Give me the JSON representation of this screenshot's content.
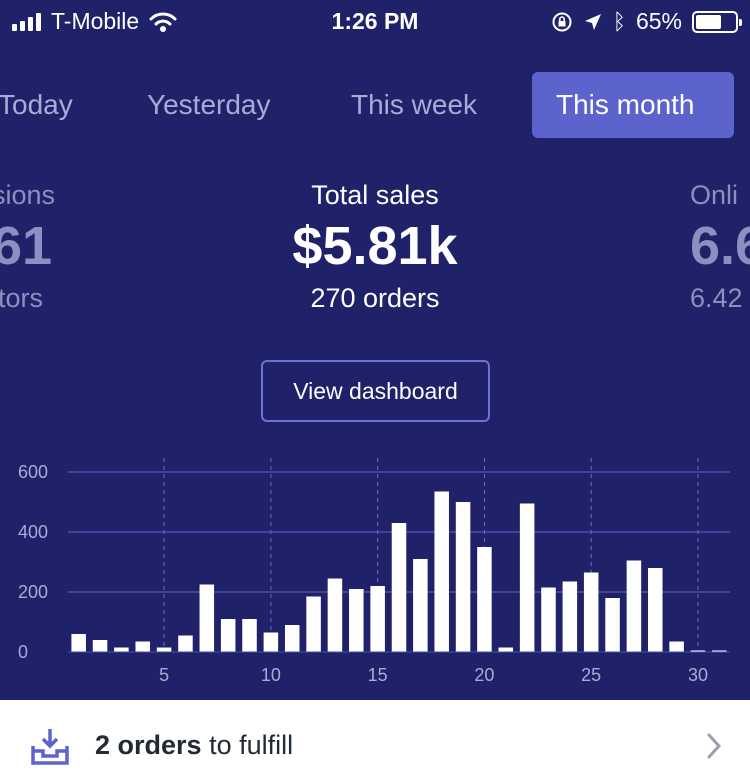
{
  "status_bar": {
    "carrier": "T-Mobile",
    "time": "1:26 PM",
    "battery_percent": "65%",
    "battery_level": 0.65
  },
  "tabs": [
    {
      "label": "Today"
    },
    {
      "label": "Yesterday"
    },
    {
      "label": "This week"
    },
    {
      "label": "This month",
      "active": true
    }
  ],
  "metrics": {
    "left": {
      "label": "sions",
      "value": "61",
      "sub": "itors"
    },
    "center": {
      "label": "Total sales",
      "value": "$5.81k",
      "sub": "270 orders"
    },
    "right": {
      "label": "Onli",
      "value": "6.6",
      "sub": "6.42"
    }
  },
  "view_dashboard_label": "View dashboard",
  "chart_data": {
    "type": "bar",
    "x": [
      1,
      2,
      3,
      4,
      5,
      6,
      7,
      8,
      9,
      10,
      11,
      12,
      13,
      14,
      15,
      16,
      17,
      18,
      19,
      20,
      21,
      22,
      23,
      24,
      25,
      26,
      27,
      28,
      29,
      30,
      31
    ],
    "values": [
      60,
      40,
      15,
      35,
      15,
      55,
      225,
      110,
      110,
      65,
      90,
      185,
      245,
      210,
      220,
      430,
      310,
      535,
      500,
      350,
      15,
      495,
      215,
      235,
      265,
      180,
      305,
      280,
      35,
      5,
      5
    ],
    "x_ticks": [
      5,
      10,
      15,
      20,
      25,
      30
    ],
    "y_ticks": [
      0,
      200,
      400,
      600
    ],
    "ylim": [
      0,
      650
    ],
    "bar_color": "#ffffff",
    "grid_color": "#4a4fb0"
  },
  "banner": {
    "bold_text": "2 orders",
    "text": " to fulfill",
    "icon": "inbox-download-icon"
  }
}
